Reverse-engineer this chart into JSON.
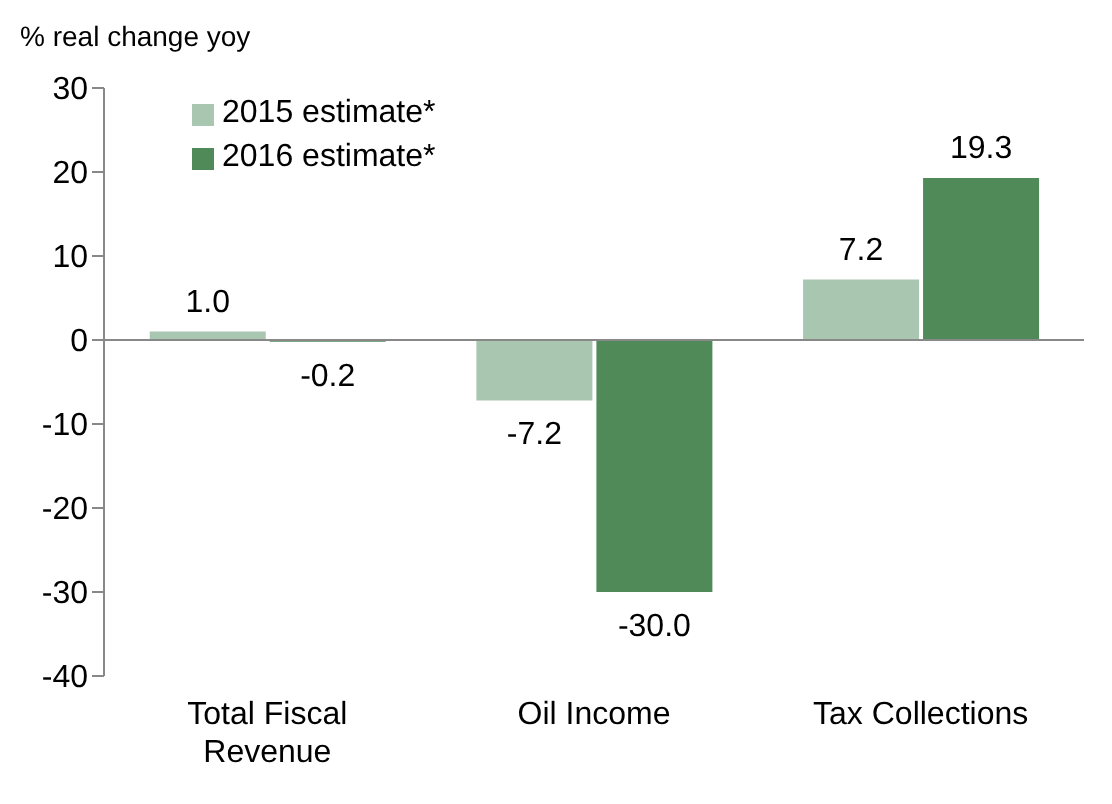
{
  "chart_data": {
    "type": "bar",
    "ylabel": "% real change yoy",
    "categories": [
      "Total Fiscal Revenue",
      "Oil Income",
      "Tax Collections"
    ],
    "series": [
      {
        "name": "2015 estimate*",
        "color": "#a9c6b0",
        "values": [
          1.0,
          -7.2,
          7.2
        ],
        "value_labels": [
          "1.0",
          "-7.2",
          "7.2"
        ]
      },
      {
        "name": "2016 estimate*",
        "color": "#4f8a58",
        "values": [
          -0.2,
          -30.0,
          19.3
        ],
        "value_labels": [
          "-0.2",
          "-30.0",
          "19.3"
        ]
      }
    ],
    "ylim": [
      -40,
      30
    ],
    "yticks": [
      -40,
      -30,
      -20,
      -10,
      0,
      10,
      20,
      30
    ],
    "grid": false,
    "ref_lines": [
      {
        "axis": "y",
        "value": 0
      }
    ],
    "legend": "top left"
  }
}
